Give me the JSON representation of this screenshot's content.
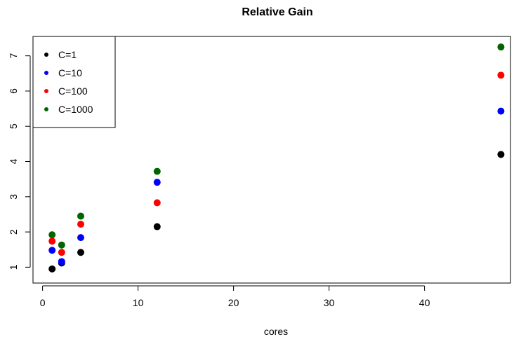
{
  "chart_data": {
    "type": "scatter",
    "title": "Relative Gain",
    "xlabel": "cores",
    "ylabel": "",
    "xlim": [
      -1,
      49
    ],
    "ylim": [
      0.55,
      7.55
    ],
    "x_ticks": [
      0,
      10,
      20,
      30,
      40
    ],
    "y_ticks": [
      1,
      2,
      3,
      4,
      5,
      6,
      7
    ],
    "x": [
      1,
      2,
      4,
      12,
      48
    ],
    "series": [
      {
        "name": "C=1",
        "color": "#000000",
        "values": [
          0.95,
          1.12,
          1.42,
          2.15,
          4.2
        ]
      },
      {
        "name": "C=10",
        "color": "#0000ff",
        "values": [
          1.48,
          1.16,
          1.84,
          3.41,
          5.43
        ]
      },
      {
        "name": "C=100",
        "color": "#ff0000",
        "values": [
          1.74,
          1.42,
          2.22,
          2.83,
          6.45
        ]
      },
      {
        "name": "C=1000",
        "color": "#006400",
        "values": [
          1.92,
          1.63,
          2.45,
          3.72,
          7.25
        ]
      }
    ],
    "legend_position": "top-left",
    "grid": false
  }
}
